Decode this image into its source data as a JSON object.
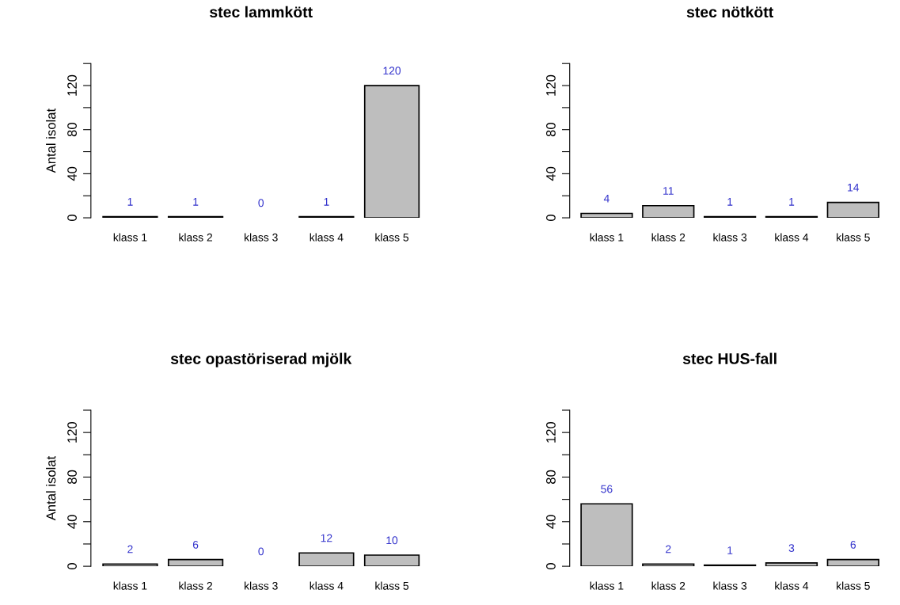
{
  "chart_data": [
    {
      "type": "bar",
      "title": "stec lammkött",
      "ylabel": "Antal isolat",
      "categories": [
        "klass 1",
        "klass 2",
        "klass 3",
        "klass 4",
        "klass 5"
      ],
      "values": [
        1,
        1,
        0,
        1,
        120
      ],
      "color": "#bebebe",
      "data_labels": true,
      "ylim": [
        0,
        140
      ],
      "yticks": [
        0,
        {
          "value": 20,
          "label": null
        },
        40,
        {
          "value": 60,
          "label": null
        },
        80,
        {
          "value": 100,
          "label": null
        },
        120,
        {
          "value": 140,
          "label": null
        }
      ],
      "grid": false,
      "legend": false
    },
    {
      "type": "bar",
      "title": "stec nötkött",
      "categories": [
        "klass 1",
        "klass 2",
        "klass 3",
        "klass 4",
        "klass 5"
      ],
      "values": [
        4,
        11,
        1,
        1,
        14
      ],
      "color": "#bebebe",
      "data_labels": true,
      "ylim": [
        0,
        140
      ],
      "yticks": [
        0,
        {
          "value": 20,
          "label": null
        },
        40,
        {
          "value": 60,
          "label": null
        },
        80,
        {
          "value": 100,
          "label": null
        },
        120,
        {
          "value": 140,
          "label": null
        }
      ],
      "grid": false,
      "legend": false
    },
    {
      "type": "bar",
      "title": "stec opastöriserad mjölk",
      "ylabel": "Antal isolat",
      "categories": [
        "klass 1",
        "klass 2",
        "klass 3",
        "klass 4",
        "klass 5"
      ],
      "values": [
        2,
        6,
        0,
        12,
        10
      ],
      "color": "#bebebe",
      "data_labels": true,
      "ylim": [
        0,
        140
      ],
      "yticks": [
        0,
        {
          "value": 20,
          "label": null
        },
        40,
        {
          "value": 60,
          "label": null
        },
        80,
        {
          "value": 100,
          "label": null
        },
        120,
        {
          "value": 140,
          "label": null
        }
      ],
      "grid": false,
      "legend": false
    },
    {
      "type": "bar",
      "title": "stec HUS-fall",
      "categories": [
        "klass 1",
        "klass 2",
        "klass 3",
        "klass 4",
        "klass 5"
      ],
      "values": [
        56,
        2,
        1,
        3,
        6
      ],
      "color": "#bebebe",
      "data_labels": true,
      "ylim": [
        0,
        140
      ],
      "yticks": [
        0,
        {
          "value": 20,
          "label": null
        },
        40,
        {
          "value": 60,
          "label": null
        },
        80,
        {
          "value": 100,
          "label": null
        },
        120,
        {
          "value": 140,
          "label": null
        }
      ],
      "grid": false,
      "legend": false
    }
  ]
}
